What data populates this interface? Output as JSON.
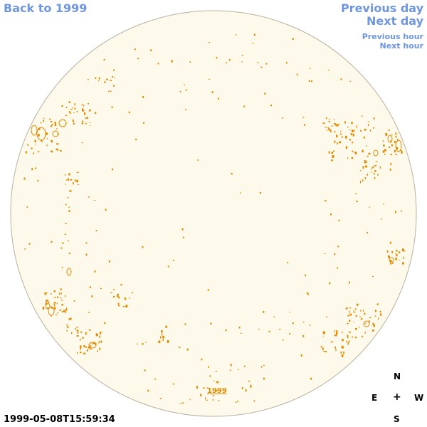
{
  "nav": {
    "back": "Back to 1999",
    "previous_day": "Previous day",
    "next_day": "Next day",
    "previous_hour": "Previous hour",
    "next_hour": "Next hour"
  },
  "disk": {
    "year_link": "1999",
    "timestamp": "1999-05-08T15:59:34",
    "fill_color": "#fefaeb",
    "edge_color": "#b8b0a0",
    "contour_color": "#e08a00"
  },
  "compass": {
    "north": "N",
    "east": "E",
    "center": "+",
    "west": "W",
    "south": "S"
  }
}
